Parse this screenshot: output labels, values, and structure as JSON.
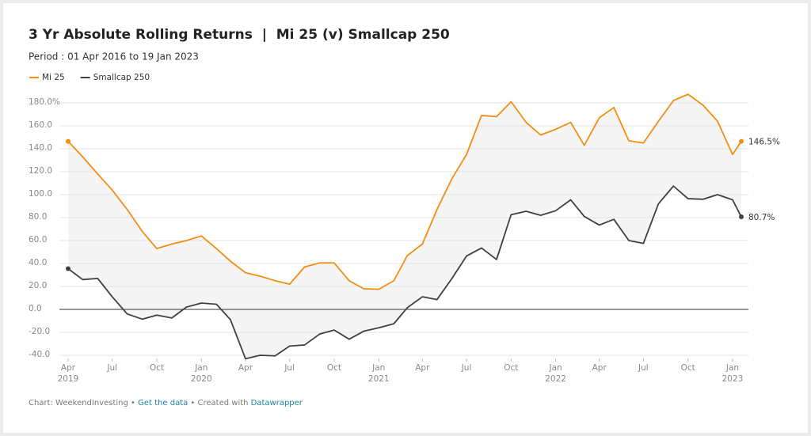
{
  "chart_data": {
    "type": "line",
    "title": "3 Yr Absolute Rolling Returns  |  Mi 25 (v) Smallcap 250",
    "subtitle": "Period : 01 Apr 2016 to 19 Jan 2023",
    "x": [
      "2019-04-01",
      "2019-05-01",
      "2019-06-01",
      "2019-07-01",
      "2019-08-01",
      "2019-09-01",
      "2019-10-01",
      "2019-11-01",
      "2019-12-01",
      "2020-01-01",
      "2020-02-01",
      "2020-03-01",
      "2020-04-01",
      "2020-05-01",
      "2020-06-01",
      "2020-07-01",
      "2020-08-01",
      "2020-09-01",
      "2020-10-01",
      "2020-11-01",
      "2020-12-01",
      "2021-01-01",
      "2021-02-01",
      "2021-03-01",
      "2021-04-01",
      "2021-05-01",
      "2021-06-01",
      "2021-07-01",
      "2021-08-01",
      "2021-09-01",
      "2021-10-01",
      "2021-11-01",
      "2021-12-01",
      "2022-01-01",
      "2022-02-01",
      "2022-03-01",
      "2022-04-01",
      "2022-05-01",
      "2022-06-01",
      "2022-07-01",
      "2022-08-01",
      "2022-09-01",
      "2022-10-01",
      "2022-11-01",
      "2022-12-01",
      "2023-01-01",
      "2023-01-19"
    ],
    "series": [
      {
        "name": "Mi 25",
        "color": "#f28e14",
        "values": [
          146.5,
          133,
          118,
          104,
          87,
          68,
          53,
          57,
          60,
          64,
          53,
          42,
          32,
          29,
          25,
          22,
          37,
          40.5,
          40.5,
          25,
          18,
          17.5,
          25,
          47,
          57,
          87,
          114,
          135,
          169,
          168,
          181,
          163,
          152,
          157,
          163,
          143,
          167,
          176,
          147,
          145,
          164,
          182,
          187.5,
          178,
          164,
          135,
          146.5
        ],
        "value_labels": [
          null,
          null,
          null,
          null,
          null,
          null,
          null,
          null,
          null,
          null,
          null,
          null,
          null,
          null,
          null,
          null,
          null,
          null,
          null,
          null,
          null,
          null,
          null,
          null,
          null,
          null,
          null,
          null,
          null,
          null,
          null,
          null,
          null,
          null,
          null,
          null,
          null,
          null,
          null,
          null,
          null,
          null,
          null,
          null,
          null,
          null,
          "146.5%"
        ]
      },
      {
        "name": "Smallcap 250",
        "color": "#404040",
        "values": [
          35.5,
          26,
          27,
          11,
          -4,
          -8.5,
          -5,
          -7.5,
          2,
          5.5,
          4.5,
          -9,
          -43,
          -40,
          -40.5,
          -32,
          -31,
          -21.5,
          -18,
          -26,
          -19,
          -16,
          -12.5,
          1.5,
          11,
          8.5,
          27,
          46.5,
          53.5,
          43.5,
          82.5,
          85.5,
          82,
          86,
          95.5,
          81,
          73.5,
          78.5,
          60,
          57.5,
          92,
          107.5,
          96.5,
          96,
          100,
          95.5,
          80.7
        ],
        "value_labels": [
          null,
          null,
          null,
          null,
          null,
          null,
          null,
          null,
          null,
          null,
          null,
          null,
          null,
          null,
          null,
          null,
          null,
          null,
          null,
          null,
          null,
          null,
          null,
          null,
          null,
          null,
          null,
          null,
          null,
          null,
          null,
          null,
          null,
          null,
          null,
          null,
          null,
          null,
          null,
          null,
          null,
          null,
          null,
          null,
          null,
          null,
          "80.7%"
        ]
      }
    ],
    "xlim": [
      "2019-04-01",
      "2023-01-19"
    ],
    "xticks": [
      {
        "value": "2019-04-01",
        "label": "Apr 2019"
      },
      {
        "value": "2019-07-01",
        "label": "Jul"
      },
      {
        "value": "2019-10-01",
        "label": "Oct"
      },
      {
        "value": "2020-01-01",
        "label": "Jan 2020"
      },
      {
        "value": "2020-04-01",
        "label": "Apr"
      },
      {
        "value": "2020-07-01",
        "label": "Jul"
      },
      {
        "value": "2020-10-01",
        "label": "Oct"
      },
      {
        "value": "2021-01-01",
        "label": "Jan 2021"
      },
      {
        "value": "2021-04-01",
        "label": "Apr"
      },
      {
        "value": "2021-07-01",
        "label": "Jul"
      },
      {
        "value": "2021-10-01",
        "label": "Oct"
      },
      {
        "value": "2022-01-01",
        "label": "Jan 2022"
      },
      {
        "value": "2022-04-01",
        "label": "Apr"
      },
      {
        "value": "2022-07-01",
        "label": "Jul"
      },
      {
        "value": "2022-10-01",
        "label": "Oct"
      },
      {
        "value": "2023-01-01",
        "label": "Jan 2023"
      }
    ],
    "ylim": [
      -40,
      180
    ],
    "yticks": [
      {
        "value": 180,
        "label": "180.0%"
      },
      {
        "value": 160,
        "label": "160.0"
      },
      {
        "value": 140,
        "label": "140.0"
      },
      {
        "value": 120,
        "label": "120.0"
      },
      {
        "value": 100,
        "label": "100.0"
      },
      {
        "value": 80,
        "label": "80.0"
      },
      {
        "value": 60,
        "label": "60.0"
      },
      {
        "value": 40,
        "label": "40.0"
      },
      {
        "value": 20,
        "label": "20.0"
      },
      {
        "value": 0,
        "label": "0.0"
      },
      {
        "value": -20,
        "label": "-20.0"
      },
      {
        "value": -40,
        "label": "-40.0"
      }
    ],
    "grid": true,
    "area_color": "#f5f5f5",
    "footer": [
      {
        "text": "Chart: WeekendInvesting",
        "link": false
      },
      {
        "text": " • ",
        "link": false
      },
      {
        "text": "Get the data",
        "link": true
      },
      {
        "text": " • Created with ",
        "link": false
      },
      {
        "text": "Datawrapper",
        "link": true
      }
    ]
  }
}
